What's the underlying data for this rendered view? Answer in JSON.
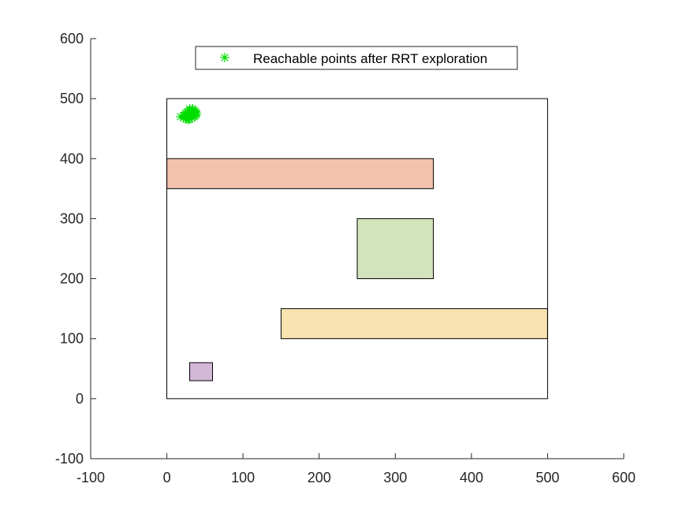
{
  "chart_data": {
    "type": "scatter",
    "title": "",
    "xlabel": "",
    "ylabel": "",
    "xlim": [
      -100,
      600
    ],
    "ylim": [
      -100,
      600
    ],
    "xticks": [
      "-100",
      "0",
      "100",
      "200",
      "300",
      "400",
      "500",
      "600"
    ],
    "yticks": [
      "-100",
      "0",
      "100",
      "200",
      "300",
      "400",
      "500",
      "600"
    ],
    "grid": false,
    "legend": {
      "placement": "top-center",
      "entries": [
        {
          "label": "Reachable points after RRT exploration",
          "marker": "asterisk",
          "color": "#00dd00"
        }
      ]
    },
    "boundary": {
      "x": [
        0,
        500
      ],
      "y": [
        0,
        500
      ]
    },
    "obstacles": [
      {
        "x": [
          0,
          350
        ],
        "y": [
          350,
          400
        ],
        "color": "#f2c2ad"
      },
      {
        "x": [
          250,
          350
        ],
        "y": [
          200,
          300
        ],
        "color": "#d2e4bb"
      },
      {
        "x": [
          150,
          500
        ],
        "y": [
          100,
          150
        ],
        "color": "#f7e2b0"
      },
      {
        "x": [
          30,
          60
        ],
        "y": [
          30,
          60
        ],
        "color": "#d3b8d8"
      }
    ],
    "series": [
      {
        "name": "Reachable points after RRT exploration",
        "color": "#00dd00",
        "marker": "asterisk",
        "points": [
          [
            18,
            470
          ],
          [
            22,
            468
          ],
          [
            25,
            466
          ],
          [
            28,
            465
          ],
          [
            30,
            466
          ],
          [
            33,
            468
          ],
          [
            36,
            470
          ],
          [
            38,
            472
          ],
          [
            39,
            475
          ],
          [
            38,
            478
          ],
          [
            36,
            480
          ],
          [
            33,
            481
          ],
          [
            30,
            480
          ],
          [
            27,
            478
          ],
          [
            25,
            476
          ],
          [
            24,
            473
          ],
          [
            26,
            470
          ],
          [
            29,
            469
          ],
          [
            32,
            471
          ],
          [
            34,
            474
          ],
          [
            31,
            476
          ],
          [
            28,
            474
          ],
          [
            30,
            472
          ],
          [
            32,
            478
          ],
          [
            35,
            476
          ],
          [
            27,
            471
          ],
          [
            23,
            472
          ],
          [
            30,
            483
          ],
          [
            34,
            483
          ],
          [
            29,
            468
          ],
          [
            36,
            474
          ],
          [
            26,
            467
          ]
        ]
      }
    ]
  }
}
